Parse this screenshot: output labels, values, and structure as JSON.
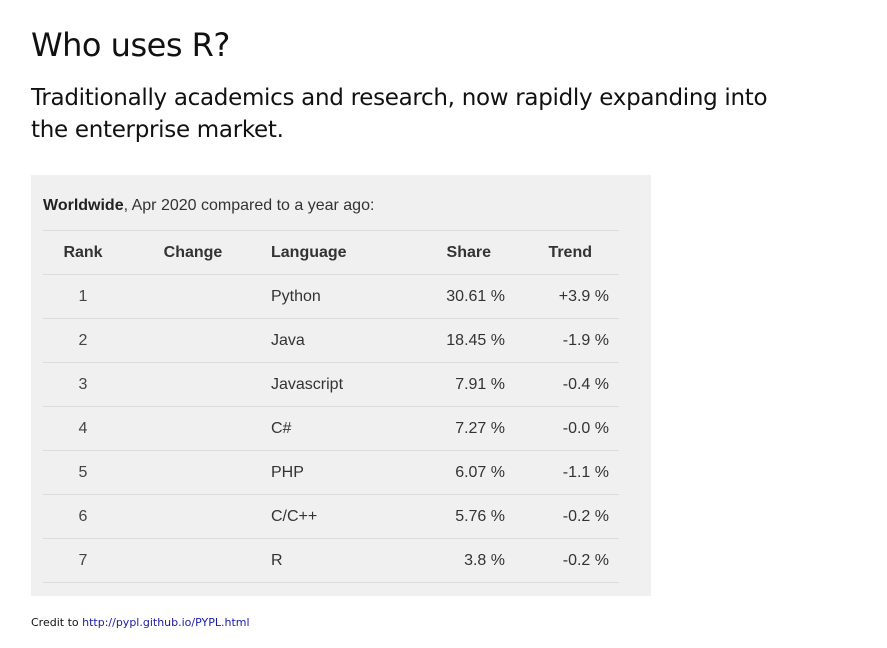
{
  "slide": {
    "title": "Who uses R?",
    "subtitle": "Traditionally academics and research, now rapidly expanding into the enterprise market."
  },
  "table": {
    "caption_bold": "Worldwide",
    "caption_rest": ", Apr 2020 compared to a year ago:",
    "headers": {
      "rank": "Rank",
      "change": "Change",
      "language": "Language",
      "share": "Share",
      "trend": "Trend"
    },
    "rows": [
      {
        "rank": "1",
        "change": "",
        "language": "Python",
        "share": "30.61 %",
        "trend": "+3.9 %"
      },
      {
        "rank": "2",
        "change": "",
        "language": "Java",
        "share": "18.45 %",
        "trend": "-1.9 %"
      },
      {
        "rank": "3",
        "change": "",
        "language": "Javascript",
        "share": "7.91 %",
        "trend": "-0.4 %"
      },
      {
        "rank": "4",
        "change": "",
        "language": "C#",
        "share": "7.27 %",
        "trend": "-0.0 %"
      },
      {
        "rank": "5",
        "change": "",
        "language": "PHP",
        "share": "6.07 %",
        "trend": "-1.1 %"
      },
      {
        "rank": "6",
        "change": "",
        "language": "C/C++",
        "share": "5.76 %",
        "trend": "-0.2 %"
      },
      {
        "rank": "7",
        "change": "",
        "language": "R",
        "share": "3.8 %",
        "trend": "-0.2 %"
      }
    ]
  },
  "credit": {
    "prefix": "Credit to ",
    "link_text": "http://pypl.github.io/PYPL.html",
    "link_color": "#1a1aa6"
  }
}
